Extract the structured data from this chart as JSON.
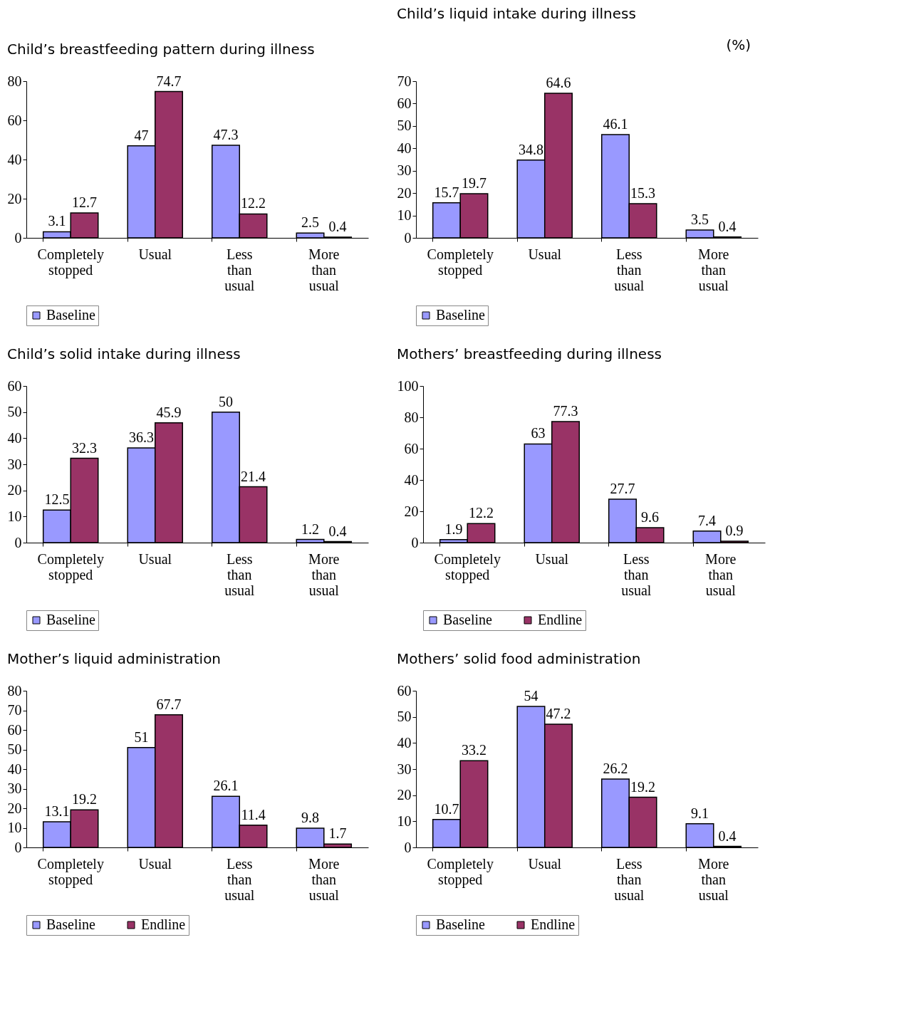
{
  "chart_data": [
    {
      "type": "bar",
      "title": "Child’s breastfeeding pattern during illness",
      "categories": [
        "Completely stopped",
        "Usual",
        "Less than usual",
        "More than usual"
      ],
      "series": [
        {
          "name": "Baseline",
          "color": "#9999ff",
          "values": [
            3.1,
            47,
            47.3,
            2.5
          ]
        },
        {
          "color": "#993366",
          "values": [
            12.7,
            74.7,
            12.2,
            0.4
          ]
        }
      ],
      "ylim": [
        0,
        80
      ],
      "yticks": [
        0,
        20,
        40,
        60,
        80
      ],
      "data_labels": true,
      "legend": "bottom",
      "grid": false
    },
    {
      "type": "bar",
      "title": "Child’s liquid intake during illness",
      "annotations": [
        "(%)"
      ],
      "categories": [
        "Completely stopped",
        "Usual",
        "Less than usual",
        "More than usual"
      ],
      "series": [
        {
          "name": "Baseline",
          "color": "#9999ff",
          "values": [
            15.7,
            34.8,
            46.1,
            3.5
          ]
        },
        {
          "color": "#993366",
          "values": [
            19.7,
            64.6,
            15.3,
            0.4
          ]
        }
      ],
      "ylim": [
        0,
        70
      ],
      "yticks": [
        0,
        10,
        20,
        30,
        40,
        50,
        60,
        70
      ],
      "data_labels": true,
      "legend": "bottom",
      "grid": false
    },
    {
      "type": "bar",
      "title": "Child’s solid intake during illness",
      "categories": [
        "Completely stopped",
        "Usual",
        "Less than usual",
        "More than usual"
      ],
      "series": [
        {
          "name": "Baseline",
          "color": "#9999ff",
          "values": [
            12.5,
            36.3,
            50,
            1.2
          ]
        },
        {
          "color": "#993366",
          "values": [
            32.3,
            45.9,
            21.4,
            0.4
          ]
        }
      ],
      "ylim": [
        0,
        60
      ],
      "yticks": [
        0,
        10,
        20,
        30,
        40,
        50,
        60
      ],
      "data_labels": true,
      "legend": "bottom",
      "grid": false
    },
    {
      "type": "bar",
      "title": "Mothers’ breastfeeding during illness",
      "categories": [
        "Completely stopped",
        "Usual",
        "Less than usual",
        "More than usual"
      ],
      "series": [
        {
          "name": "Baseline",
          "color": "#9999ff",
          "values": [
            1.9,
            63,
            27.7,
            7.4
          ]
        },
        {
          "name": "Endline",
          "color": "#993366",
          "values": [
            12.2,
            77.3,
            9.6,
            0.9
          ]
        }
      ],
      "ylim": [
        0,
        100
      ],
      "yticks": [
        0,
        20,
        40,
        60,
        80,
        100
      ],
      "data_labels": true,
      "legend": "bottom",
      "grid": false
    },
    {
      "type": "bar",
      "title": "Mother’s liquid administration",
      "categories": [
        "Completely stopped",
        "Usual",
        "Less than usual",
        "More than usual"
      ],
      "series": [
        {
          "name": "Baseline",
          "color": "#9999ff",
          "values": [
            13.1,
            51,
            26.1,
            9.8
          ]
        },
        {
          "name": "Endline",
          "color": "#993366",
          "values": [
            19.2,
            67.7,
            11.4,
            1.7
          ]
        }
      ],
      "ylim": [
        0,
        80
      ],
      "yticks": [
        0,
        10,
        20,
        30,
        40,
        50,
        60,
        70,
        80
      ],
      "data_labels": true,
      "legend": "bottom",
      "grid": false
    },
    {
      "type": "bar",
      "title": "Mothers’ solid food administration",
      "categories": [
        "Completely stopped",
        "Usual",
        "Less than usual",
        "More than usual"
      ],
      "series": [
        {
          "name": "Baseline",
          "color": "#9999ff",
          "values": [
            10.7,
            54,
            26.2,
            9.1
          ]
        },
        {
          "name": "Endline",
          "color": "#993366",
          "values": [
            33.2,
            47.2,
            19.2,
            0.4
          ]
        }
      ],
      "ylim": [
        0,
        60
      ],
      "yticks": [
        0,
        10,
        20,
        30,
        40,
        50,
        60
      ],
      "data_labels": true,
      "legend": "bottom",
      "grid": false
    }
  ]
}
